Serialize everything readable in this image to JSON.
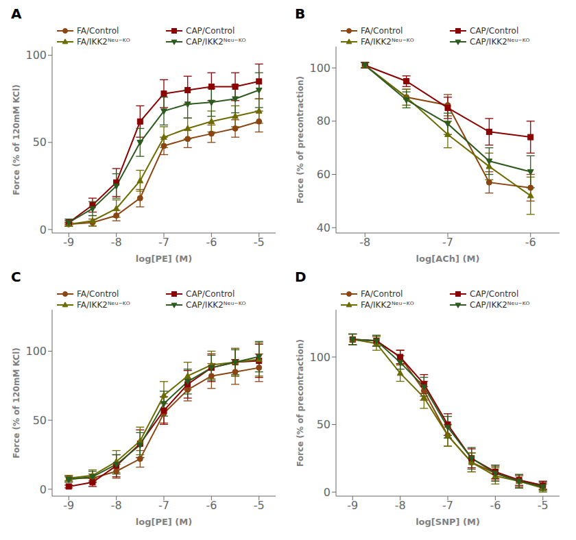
{
  "chart_data": [
    {
      "type": "line",
      "title": "A",
      "x_label": "log[PE] (M)",
      "y_label": "Force (% of 120mM KCl)",
      "legend": "upper left",
      "x": [
        -9,
        -8.5,
        -8,
        -7.5,
        -7,
        -6.5,
        -6,
        -5.5,
        -5
      ],
      "xlim": [
        -9.35,
        -4.65
      ],
      "xticks": [
        -9,
        -8,
        -7,
        -6,
        -5
      ],
      "ylim": [
        -2,
        105
      ],
      "yticks": [
        0,
        50,
        100
      ],
      "series": [
        {
          "name": "FA/Control",
          "color": "#8B4513",
          "marker": "circle",
          "line_style": "solid",
          "values": [
            3,
            4,
            8,
            18,
            48,
            52,
            55,
            58,
            62
          ],
          "errors": [
            1,
            2,
            3,
            5,
            5,
            5,
            5,
            5,
            6
          ]
        },
        {
          "name": "CAP/Control",
          "color": "#8B0000",
          "marker": "square",
          "line_style": "solid",
          "values": [
            4,
            14,
            27,
            62,
            78,
            80,
            82,
            82,
            85
          ],
          "errors": [
            1,
            4,
            8,
            9,
            8,
            8,
            8,
            8,
            10
          ]
        },
        {
          "name": "FA/IKK2ᴺᵉᵘ⁻ᴷᴼ",
          "color": "#6B6B00",
          "marker": "triangle-up",
          "line_style": "solid",
          "values": [
            3,
            5,
            12,
            28,
            53,
            58,
            62,
            65,
            68
          ],
          "errors": [
            1,
            3,
            5,
            6,
            6,
            6,
            6,
            6,
            7
          ]
        },
        {
          "name": "CAP/IKK2ᴺᵉᵘ⁻ᴷᴼ",
          "color": "#2D5A1E",
          "marker": "triangle-down",
          "line_style": "solid",
          "values": [
            4,
            12,
            25,
            50,
            68,
            72,
            73,
            75,
            80
          ],
          "errors": [
            2,
            4,
            7,
            8,
            8,
            8,
            8,
            8,
            10
          ]
        }
      ]
    },
    {
      "type": "line",
      "title": "B",
      "x_label": "log[ACh] (M)",
      "y_label": "Force (% of precontraction)",
      "legend": "upper left",
      "x": [
        -8,
        -7.5,
        -7,
        -6.5,
        -6
      ],
      "xlim": [
        -8.35,
        -5.65
      ],
      "xticks": [
        -8,
        -7,
        -6
      ],
      "ylim": [
        38,
        108
      ],
      "yticks": [
        40,
        60,
        80,
        100
      ],
      "series": [
        {
          "name": "FA/Control",
          "color": "#8B4513",
          "marker": "circle",
          "line_style": "solid",
          "values": [
            101,
            89,
            86,
            57,
            55
          ],
          "errors": [
            1,
            3,
            4,
            4,
            5
          ]
        },
        {
          "name": "CAP/Control",
          "color": "#8B0000",
          "marker": "square",
          "line_style": "solid",
          "values": [
            101,
            95,
            85,
            76,
            74
          ],
          "errors": [
            1,
            2,
            4,
            5,
            6
          ]
        },
        {
          "name": "FA/IKK2ᴺᵉᵘ⁻ᴷᴼ",
          "color": "#6B6B00",
          "marker": "triangle-up",
          "line_style": "solid",
          "values": [
            101,
            89,
            75,
            63,
            52
          ],
          "errors": [
            1,
            3,
            5,
            5,
            7
          ]
        },
        {
          "name": "CAP/IKK2ᴺᵉᵘ⁻ᴷᴼ",
          "color": "#2D5A1E",
          "marker": "triangle-down",
          "line_style": "solid",
          "values": [
            101,
            88,
            79,
            65,
            61
          ],
          "errors": [
            1,
            3,
            4,
            5,
            6
          ]
        }
      ]
    },
    {
      "type": "line",
      "title": "C",
      "x_label": "log[PE] (M)",
      "y_label": "Force (% of 120mM KCl)",
      "legend": "upper left",
      "x": [
        -9,
        -8.5,
        -8,
        -7.5,
        -7,
        -6.5,
        -6,
        -5.5,
        -5
      ],
      "xlim": [
        -9.35,
        -4.65
      ],
      "xticks": [
        -9,
        -8,
        -7,
        -6,
        -5
      ],
      "ylim": [
        -5,
        130
      ],
      "yticks": [
        0,
        50,
        100
      ],
      "series": [
        {
          "name": "FA/Control",
          "color": "#8B4513",
          "marker": "circle",
          "line_style": "solid",
          "values": [
            8,
            8,
            13,
            22,
            55,
            72,
            82,
            85,
            88
          ],
          "errors": [
            2,
            3,
            5,
            6,
            7,
            8,
            9,
            9,
            10
          ]
        },
        {
          "name": "CAP/Control",
          "color": "#8B0000",
          "marker": "square",
          "line_style": "solid",
          "values": [
            2,
            5,
            17,
            33,
            57,
            76,
            88,
            92,
            93
          ],
          "errors": [
            1,
            3,
            8,
            10,
            10,
            10,
            10,
            10,
            12
          ]
        },
        {
          "name": "FA/IKK2ᴺᵉᵘ⁻ᴷᴼ",
          "color": "#6B6B00",
          "marker": "triangle-up",
          "line_style": "solid",
          "values": [
            8,
            10,
            20,
            35,
            68,
            82,
            90,
            92,
            94
          ],
          "errors": [
            2,
            4,
            8,
            10,
            10,
            10,
            10,
            10,
            12
          ]
        },
        {
          "name": "CAP/IKK2ᴺᵉᵘ⁻ᴷᴼ",
          "color": "#2D5A1E",
          "marker": "triangle-down",
          "line_style": "solid",
          "values": [
            7,
            9,
            18,
            32,
            62,
            78,
            88,
            92,
            96
          ],
          "errors": [
            2,
            4,
            7,
            9,
            9,
            9,
            9,
            9,
            11
          ]
        }
      ]
    },
    {
      "type": "line",
      "title": "D",
      "x_label": "log[SNP] (M)",
      "y_label": "Force (% of precontraction)",
      "legend": "upper left",
      "x": [
        -9,
        -8.5,
        -8,
        -7.5,
        -7,
        -6.5,
        -6,
        -5.5,
        -5
      ],
      "xlim": [
        -9.35,
        -4.65
      ],
      "xticks": [
        -9,
        -8,
        -7,
        -6,
        -5
      ],
      "ylim": [
        -3,
        135
      ],
      "yticks": [
        0,
        50,
        100
      ],
      "series": [
        {
          "name": "FA/Control",
          "color": "#8B4513",
          "marker": "circle",
          "line_style": "solid",
          "values": [
            113,
            112,
            100,
            75,
            42,
            22,
            14,
            8,
            5
          ],
          "errors": [
            4,
            4,
            5,
            7,
            8,
            7,
            5,
            4,
            3
          ]
        },
        {
          "name": "CAP/Control",
          "color": "#8B0000",
          "marker": "square",
          "line_style": "solid",
          "values": [
            113,
            112,
            100,
            80,
            50,
            25,
            15,
            9,
            5
          ],
          "errors": [
            4,
            4,
            5,
            7,
            8,
            7,
            5,
            4,
            3
          ]
        },
        {
          "name": "FA/IKK2ᴺᵉᵘ⁻ᴷᴼ",
          "color": "#6B6B00",
          "marker": "triangle-up",
          "line_style": "solid",
          "values": [
            113,
            110,
            88,
            70,
            42,
            22,
            12,
            8,
            3
          ],
          "errors": [
            4,
            5,
            6,
            8,
            8,
            7,
            6,
            5,
            3
          ]
        },
        {
          "name": "CAP/IKK2ᴺᵉᵘ⁻ᴷᴼ",
          "color": "#2D5A1E",
          "marker": "triangle-down",
          "line_style": "solid",
          "values": [
            113,
            112,
            96,
            78,
            48,
            25,
            14,
            8,
            4
          ],
          "errors": [
            4,
            4,
            5,
            7,
            8,
            8,
            6,
            5,
            3
          ]
        }
      ]
    }
  ]
}
